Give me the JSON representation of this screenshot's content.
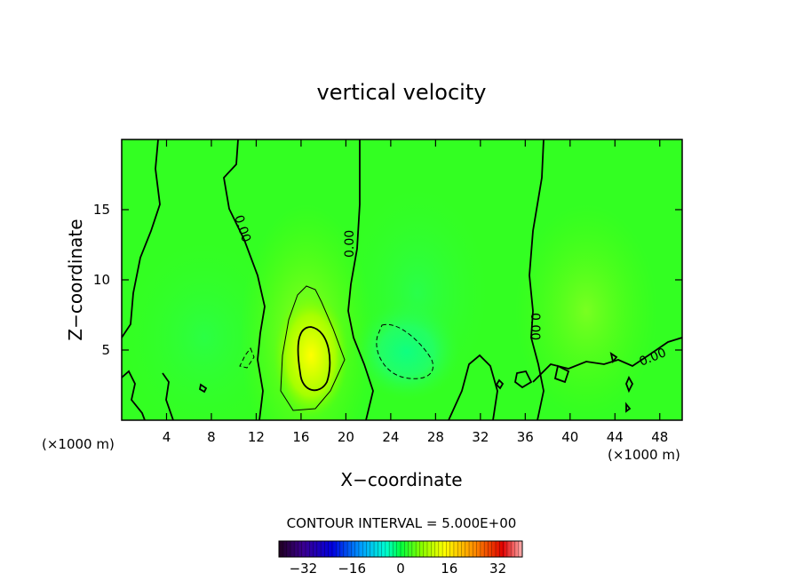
{
  "chart_data": {
    "type": "heatmap",
    "title": "vertical velocity",
    "xlabel": "X−coordinate",
    "ylabel": "Z−coordinate",
    "x_unit_left": "(×1000 m)",
    "x_unit_right": "(×1000 m)",
    "xlim": [
      0,
      50
    ],
    "ylim": [
      0,
      20
    ],
    "x_ticks": [
      4,
      8,
      12,
      16,
      20,
      24,
      28,
      32,
      36,
      40,
      44,
      48
    ],
    "y_ticks": [
      5,
      10,
      15
    ],
    "contour_interval_label": "CONTOUR INTERVAL = 5.000E+00",
    "contour_label": "0.00",
    "colorbar": {
      "range": [
        -40,
        40
      ],
      "ticks": [
        -32,
        -16,
        0,
        16,
        32
      ],
      "tick_labels": [
        "−32",
        "−16",
        "0",
        "16",
        "32"
      ]
    },
    "features": [
      {
        "name": "updraft",
        "x": 17,
        "z": 4.5,
        "w": 14
      },
      {
        "name": "downdraft",
        "x": 26,
        "z": 4.5,
        "w": -7
      }
    ]
  }
}
